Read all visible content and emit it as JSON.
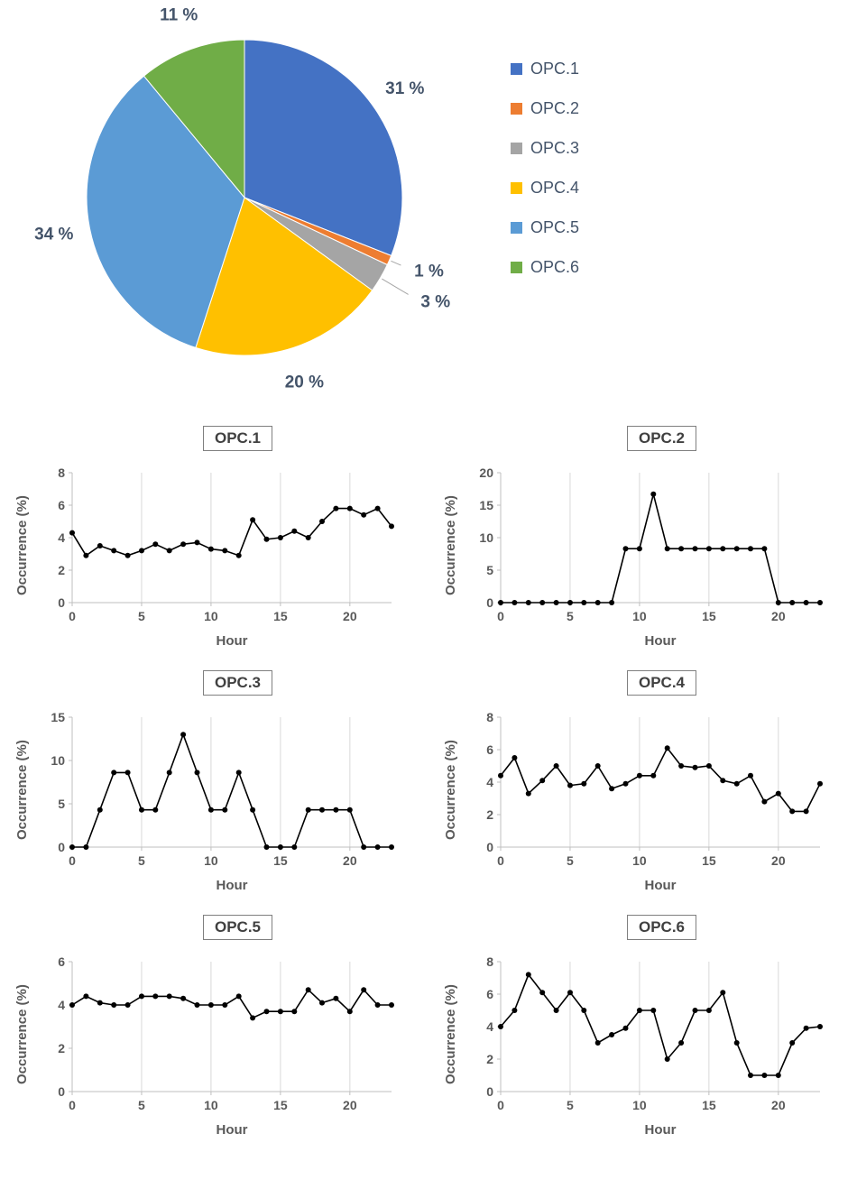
{
  "chart_data": [
    {
      "type": "pie",
      "labels": [
        "OPC.1",
        "OPC.2",
        "OPC.3",
        "OPC.4",
        "OPC.5",
        "OPC.6"
      ],
      "values": [
        31,
        1,
        3,
        20,
        34,
        11
      ],
      "pct_labels": [
        "31 %",
        "1 %",
        "3 %",
        "20 %",
        "34 %",
        "11 %"
      ],
      "colors": [
        "#4472C4",
        "#ED7D31",
        "#A5A5A5",
        "#FFC000",
        "#5B9BD5",
        "#70AD47"
      ],
      "legend_position": "right",
      "start_angle_deg": 0,
      "direction": "clockwise"
    },
    {
      "type": "line",
      "title": "OPC.1",
      "xlabel": "Hour",
      "ylabel": "Occurrence (%)",
      "ylim": [
        0,
        8
      ],
      "yticks": [
        0,
        2,
        4,
        6,
        8
      ],
      "xticks": [
        0,
        5,
        10,
        15,
        20
      ],
      "x": [
        0,
        1,
        2,
        3,
        4,
        5,
        6,
        7,
        8,
        9,
        10,
        11,
        12,
        13,
        14,
        15,
        16,
        17,
        18,
        19,
        20,
        21,
        22,
        23
      ],
      "values": [
        4.3,
        2.9,
        3.5,
        3.2,
        2.9,
        3.2,
        3.6,
        3.2,
        3.6,
        3.7,
        3.3,
        3.2,
        2.9,
        5.1,
        3.9,
        4.0,
        4.4,
        4.0,
        5.0,
        5.8,
        5.8,
        5.4,
        5.8,
        4.7
      ]
    },
    {
      "type": "line",
      "title": "OPC.2",
      "xlabel": "Hour",
      "ylabel": "Occurrence (%)",
      "ylim": [
        0,
        20
      ],
      "yticks": [
        0,
        5,
        10,
        15,
        20
      ],
      "xticks": [
        0,
        5,
        10,
        15,
        20
      ],
      "x": [
        0,
        1,
        2,
        3,
        4,
        5,
        6,
        7,
        8,
        9,
        10,
        11,
        12,
        13,
        14,
        15,
        16,
        17,
        18,
        19,
        20,
        21,
        22,
        23
      ],
      "values": [
        0,
        0,
        0,
        0,
        0,
        0,
        0,
        0,
        0,
        8.3,
        8.3,
        16.7,
        8.3,
        8.3,
        8.3,
        8.3,
        8.3,
        8.3,
        8.3,
        8.3,
        0,
        0,
        0,
        0
      ]
    },
    {
      "type": "line",
      "title": "OPC.3",
      "xlabel": "Hour",
      "ylabel": "Occurrence (%)",
      "ylim": [
        0,
        15
      ],
      "yticks": [
        0,
        5,
        10,
        15
      ],
      "xticks": [
        0,
        5,
        10,
        15,
        20
      ],
      "x": [
        0,
        1,
        2,
        3,
        4,
        5,
        6,
        7,
        8,
        9,
        10,
        11,
        12,
        13,
        14,
        15,
        16,
        17,
        18,
        19,
        20,
        21,
        22,
        23
      ],
      "values": [
        0,
        0,
        4.3,
        8.6,
        8.6,
        4.3,
        4.3,
        8.6,
        13,
        8.6,
        4.3,
        4.3,
        8.6,
        4.3,
        0,
        0,
        0,
        4.3,
        4.3,
        4.3,
        4.3,
        0,
        0,
        0
      ]
    },
    {
      "type": "line",
      "title": "OPC.4",
      "xlabel": "Hour",
      "ylabel": "Occurrence (%)",
      "ylim": [
        0,
        8
      ],
      "yticks": [
        0,
        2,
        4,
        6,
        8
      ],
      "xticks": [
        0,
        5,
        10,
        15,
        20
      ],
      "x": [
        0,
        1,
        2,
        3,
        4,
        5,
        6,
        7,
        8,
        9,
        10,
        11,
        12,
        13,
        14,
        15,
        16,
        17,
        18,
        19,
        20,
        21,
        22,
        23
      ],
      "values": [
        4.4,
        5.5,
        3.3,
        4.1,
        5.0,
        3.8,
        3.9,
        5.0,
        3.6,
        3.9,
        4.4,
        4.4,
        6.1,
        5.0,
        4.9,
        5.0,
        4.1,
        3.9,
        4.4,
        2.8,
        3.3,
        2.2,
        2.2,
        3.9
      ]
    },
    {
      "type": "line",
      "title": "OPC.5",
      "xlabel": "Hour",
      "ylabel": "Occurrence (%)",
      "ylim": [
        0,
        6
      ],
      "yticks": [
        0,
        2,
        4,
        6
      ],
      "xticks": [
        0,
        5,
        10,
        15,
        20
      ],
      "x": [
        0,
        1,
        2,
        3,
        4,
        5,
        6,
        7,
        8,
        9,
        10,
        11,
        12,
        13,
        14,
        15,
        16,
        17,
        18,
        19,
        20,
        21,
        22,
        23
      ],
      "values": [
        4.0,
        4.4,
        4.1,
        4.0,
        4.0,
        4.4,
        4.4,
        4.4,
        4.3,
        4.0,
        4.0,
        4.0,
        4.4,
        3.4,
        3.7,
        3.7,
        3.7,
        4.7,
        4.1,
        4.3,
        3.7,
        4.7,
        4.0,
        4.0
      ]
    },
    {
      "type": "line",
      "title": "OPC.6",
      "xlabel": "Hour",
      "ylabel": "Occurrence (%)",
      "ylim": [
        0,
        8
      ],
      "yticks": [
        0,
        2,
        4,
        6,
        8
      ],
      "xticks": [
        0,
        5,
        10,
        15,
        20
      ],
      "x": [
        0,
        1,
        2,
        3,
        4,
        5,
        6,
        7,
        8,
        9,
        10,
        11,
        12,
        13,
        14,
        15,
        16,
        17,
        18,
        19,
        20,
        21,
        22,
        23
      ],
      "values": [
        4.0,
        5.0,
        7.2,
        6.1,
        5.0,
        6.1,
        5.0,
        3.0,
        3.5,
        3.9,
        5.0,
        5.0,
        2.0,
        3.0,
        5.0,
        5.0,
        6.1,
        3.0,
        1.0,
        1.0,
        1.0,
        3.0,
        3.9,
        4.0
      ]
    }
  ]
}
